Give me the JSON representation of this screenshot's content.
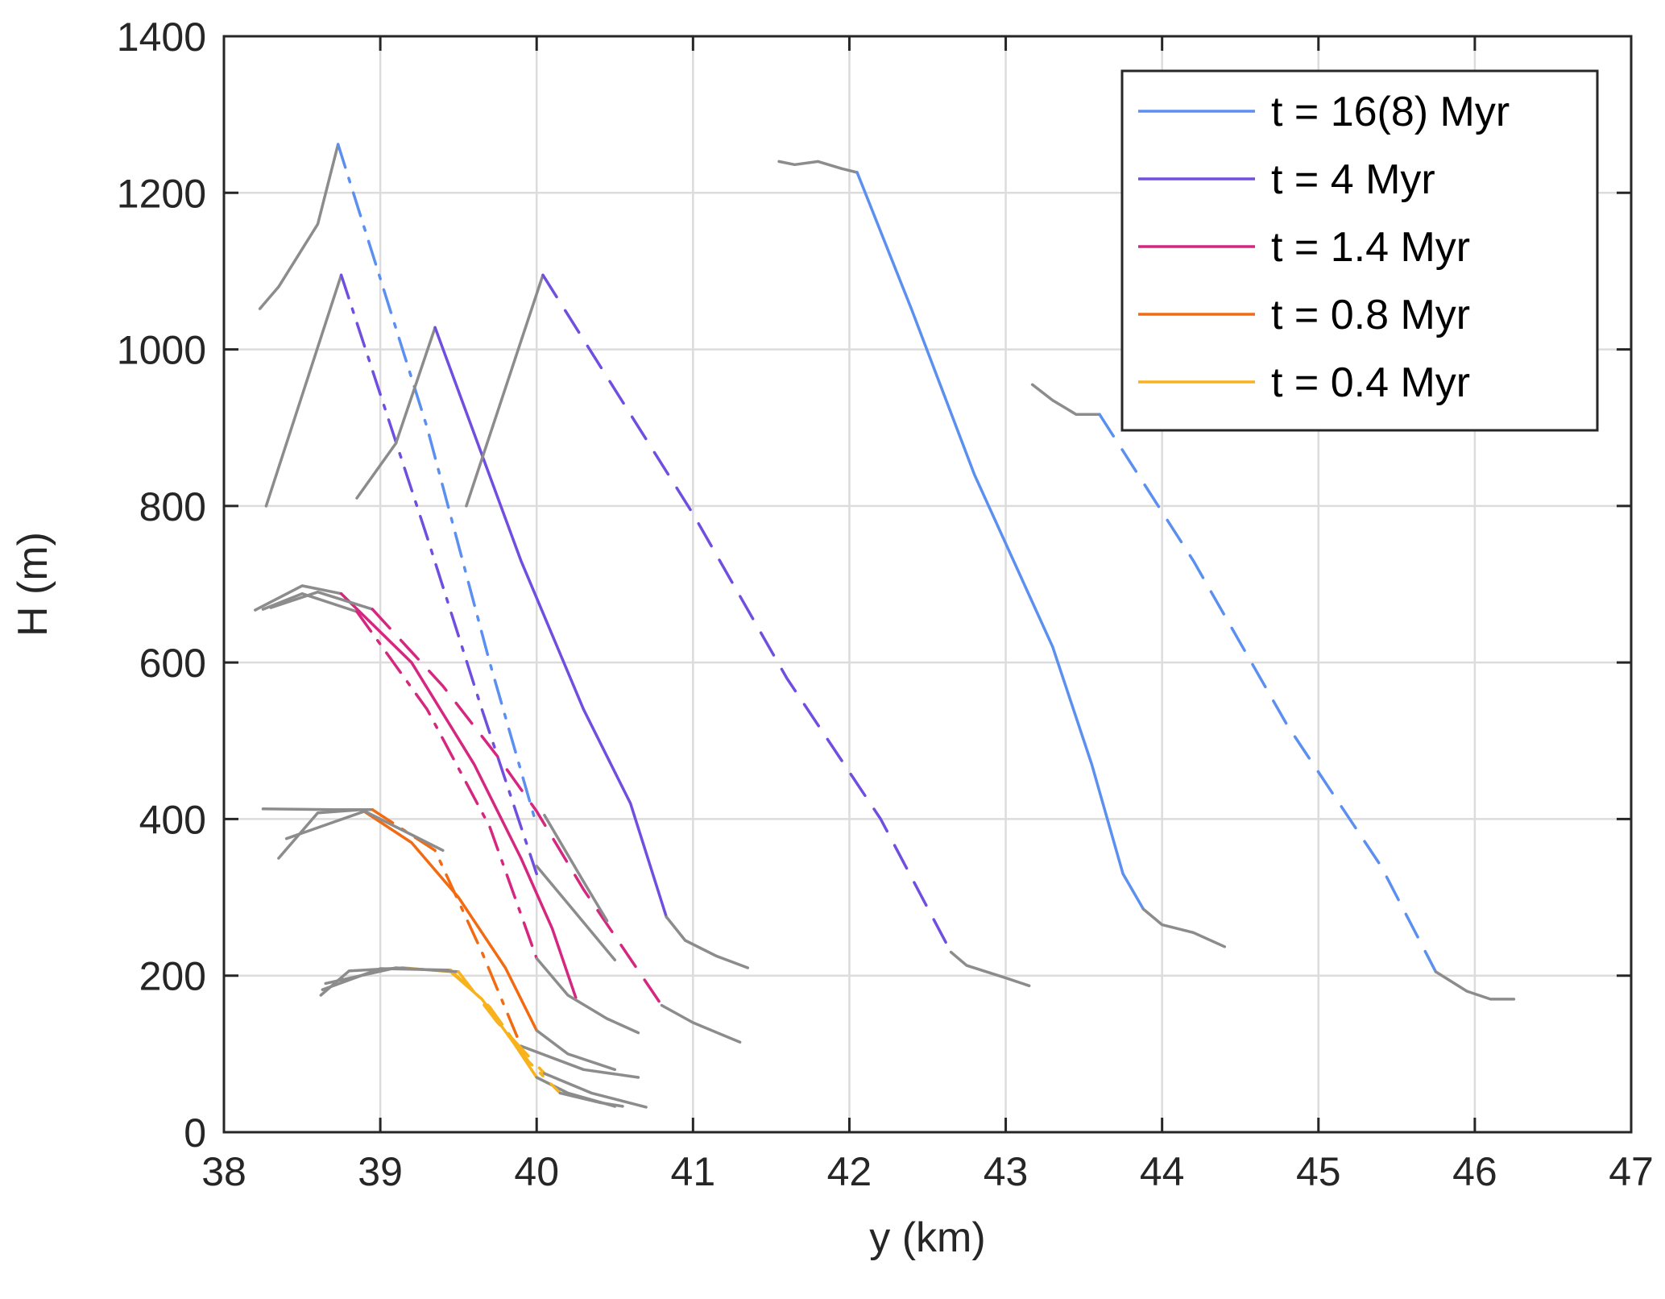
{
  "chart_data": {
    "type": "line",
    "title": "",
    "xlabel": "y (km)",
    "ylabel": "H (m)",
    "xlim": [
      38,
      47
    ],
    "ylim": [
      0,
      1400
    ],
    "xticks": [
      38,
      39,
      40,
      41,
      42,
      43,
      44,
      45,
      46,
      47
    ],
    "yticks": [
      0,
      200,
      400,
      600,
      800,
      1000,
      1200,
      1400
    ],
    "grid": true,
    "legend_position": "top-right",
    "colors": {
      "t16": "#5b8ff0",
      "t4": "#6f4ee0",
      "t1_4": "#d62780",
      "t0_8": "#f26a11",
      "t0_4": "#f7b21c",
      "gray": "#8c8c8c"
    },
    "legend": [
      {
        "label": "t = 16(8) Myr",
        "color_key": "t16"
      },
      {
        "label": "t = 4 Myr",
        "color_key": "t4"
      },
      {
        "label": "t = 1.4 Myr",
        "color_key": "t1_4"
      },
      {
        "label": "t = 0.8 Myr",
        "color_key": "t0_8"
      },
      {
        "label": "t = 0.4 Myr",
        "color_key": "t0_4"
      }
    ],
    "series": [
      {
        "color_key": "gray",
        "dash": "solid",
        "points": [
          [
            38.23,
            1052
          ],
          [
            38.35,
            1080
          ],
          [
            38.6,
            1160
          ],
          [
            38.73,
            1262
          ]
        ]
      },
      {
        "color_key": "t16",
        "dash": "dashdot",
        "points": [
          [
            38.73,
            1262
          ],
          [
            39.3,
            900
          ],
          [
            39.7,
            600
          ],
          [
            40.0,
            392
          ]
        ]
      },
      {
        "color_key": "gray",
        "dash": "solid",
        "points": [
          [
            38.27,
            800
          ],
          [
            38.75,
            1095
          ]
        ]
      },
      {
        "color_key": "t4",
        "dash": "dashdot",
        "points": [
          [
            38.75,
            1095
          ],
          [
            39.3,
            760
          ],
          [
            39.65,
            540
          ],
          [
            40.0,
            330
          ]
        ]
      },
      {
        "color_key": "gray",
        "dash": "solid",
        "points": [
          [
            38.85,
            810
          ],
          [
            39.1,
            880
          ],
          [
            39.35,
            1028
          ]
        ]
      },
      {
        "color_key": "t4",
        "dash": "solid",
        "points": [
          [
            39.35,
            1028
          ],
          [
            39.9,
            730
          ],
          [
            40.3,
            540
          ],
          [
            40.6,
            420
          ],
          [
            40.83,
            275
          ]
        ]
      },
      {
        "color_key": "gray",
        "dash": "solid",
        "points": [
          [
            40.83,
            275
          ],
          [
            40.95,
            245
          ],
          [
            41.15,
            225
          ],
          [
            41.35,
            210
          ]
        ]
      },
      {
        "color_key": "gray",
        "dash": "solid",
        "points": [
          [
            39.55,
            800
          ],
          [
            40.04,
            1095
          ]
        ]
      },
      {
        "color_key": "t4",
        "dash": "dashed",
        "points": [
          [
            40.04,
            1095
          ],
          [
            41.0,
            790
          ],
          [
            41.6,
            580
          ],
          [
            42.2,
            400
          ],
          [
            42.65,
            230
          ]
        ]
      },
      {
        "color_key": "gray",
        "dash": "solid",
        "points": [
          [
            42.65,
            230
          ],
          [
            42.75,
            213
          ],
          [
            43.0,
            197
          ],
          [
            43.15,
            187
          ]
        ]
      },
      {
        "color_key": "gray",
        "dash": "solid",
        "points": [
          [
            41.55,
            1240
          ],
          [
            41.65,
            1236
          ],
          [
            41.8,
            1240
          ],
          [
            41.95,
            1231
          ],
          [
            42.05,
            1226
          ]
        ]
      },
      {
        "color_key": "t16",
        "dash": "solid",
        "points": [
          [
            42.05,
            1226
          ],
          [
            42.4,
            1050
          ],
          [
            42.8,
            840
          ],
          [
            43.3,
            620
          ],
          [
            43.55,
            470
          ],
          [
            43.75,
            330
          ],
          [
            43.88,
            285
          ]
        ]
      },
      {
        "color_key": "gray",
        "dash": "solid",
        "points": [
          [
            43.88,
            285
          ],
          [
            44.0,
            265
          ],
          [
            44.2,
            255
          ],
          [
            44.4,
            237
          ]
        ]
      },
      {
        "color_key": "gray",
        "dash": "solid",
        "points": [
          [
            43.17,
            955
          ],
          [
            43.3,
            935
          ],
          [
            43.45,
            917
          ],
          [
            43.6,
            917
          ]
        ]
      },
      {
        "color_key": "t16",
        "dash": "dashed",
        "points": [
          [
            43.6,
            917
          ],
          [
            44.2,
            730
          ],
          [
            44.8,
            520
          ],
          [
            45.4,
            340
          ],
          [
            45.75,
            205
          ]
        ]
      },
      {
        "color_key": "gray",
        "dash": "solid",
        "points": [
          [
            45.75,
            205
          ],
          [
            45.95,
            180
          ],
          [
            46.1,
            170
          ],
          [
            46.25,
            170
          ]
        ]
      },
      {
        "color_key": "gray",
        "dash": "solid",
        "points": [
          [
            38.2,
            667
          ],
          [
            38.5,
            698
          ],
          [
            38.75,
            688
          ]
        ]
      },
      {
        "color_key": "t1_4",
        "dash": "solid",
        "points": [
          [
            38.75,
            688
          ],
          [
            39.2,
            600
          ],
          [
            39.6,
            470
          ],
          [
            39.9,
            350
          ],
          [
            40.1,
            260
          ],
          [
            40.25,
            172
          ]
        ]
      },
      {
        "color_key": "gray",
        "dash": "solid",
        "points": [
          [
            38.25,
            668
          ],
          [
            38.5,
            688
          ],
          [
            38.85,
            665
          ]
        ]
      },
      {
        "color_key": "t1_4",
        "dash": "dashdot",
        "points": [
          [
            38.85,
            665
          ],
          [
            39.3,
            540
          ],
          [
            39.7,
            390
          ],
          [
            40.0,
            222
          ]
        ]
      },
      {
        "color_key": "gray",
        "dash": "solid",
        "points": [
          [
            40.0,
            222
          ],
          [
            40.2,
            175
          ],
          [
            40.45,
            145
          ],
          [
            40.65,
            127
          ]
        ]
      },
      {
        "color_key": "gray",
        "dash": "solid",
        "points": [
          [
            38.3,
            670
          ],
          [
            38.6,
            690
          ],
          [
            38.95,
            668
          ]
        ]
      },
      {
        "color_key": "t1_4",
        "dash": "dashed",
        "points": [
          [
            38.95,
            668
          ],
          [
            39.4,
            570
          ],
          [
            39.75,
            480
          ],
          [
            40.0,
            410
          ],
          [
            40.3,
            310
          ],
          [
            40.8,
            162
          ]
        ]
      },
      {
        "color_key": "gray",
        "dash": "solid",
        "points": [
          [
            40.8,
            162
          ],
          [
            41.0,
            140
          ],
          [
            41.3,
            115
          ]
        ]
      },
      {
        "color_key": "gray",
        "dash": "solid",
        "points": [
          [
            40.0,
            340
          ],
          [
            40.25,
            280
          ],
          [
            40.5,
            220
          ]
        ]
      },
      {
        "color_key": "gray",
        "dash": "solid",
        "points": [
          [
            40.05,
            405
          ],
          [
            40.3,
            320
          ],
          [
            40.45,
            270
          ]
        ]
      },
      {
        "color_key": "gray",
        "dash": "solid",
        "points": [
          [
            38.35,
            350
          ],
          [
            38.6,
            408
          ],
          [
            38.88,
            412
          ]
        ]
      },
      {
        "color_key": "t0_8",
        "dash": "solid",
        "points": [
          [
            38.88,
            412
          ],
          [
            39.2,
            370
          ],
          [
            39.5,
            300
          ],
          [
            39.8,
            210
          ],
          [
            40.0,
            130
          ]
        ]
      },
      {
        "color_key": "gray",
        "dash": "solid",
        "points": [
          [
            40.0,
            130
          ],
          [
            40.2,
            100
          ],
          [
            40.5,
            80
          ]
        ]
      },
      {
        "color_key": "gray",
        "dash": "solid",
        "points": [
          [
            38.25,
            413
          ],
          [
            38.7,
            412
          ],
          [
            38.95,
            412
          ]
        ]
      },
      {
        "color_key": "t0_8",
        "dash": "dashdot",
        "points": [
          [
            38.95,
            412
          ],
          [
            39.35,
            360
          ],
          [
            39.65,
            230
          ],
          [
            39.9,
            110
          ]
        ]
      },
      {
        "color_key": "gray",
        "dash": "solid",
        "points": [
          [
            39.9,
            110
          ],
          [
            40.3,
            80
          ],
          [
            40.65,
            70
          ]
        ]
      },
      {
        "color_key": "gray",
        "dash": "solid",
        "points": [
          [
            38.4,
            375
          ],
          [
            38.9,
            410
          ],
          [
            39.4,
            360
          ]
        ]
      },
      {
        "color_key": "gray",
        "dash": "solid",
        "points": [
          [
            38.62,
            175
          ],
          [
            38.8,
            206
          ],
          [
            39.15,
            210
          ]
        ]
      },
      {
        "color_key": "t0_4",
        "dash": "solid",
        "points": [
          [
            39.15,
            210
          ],
          [
            39.45,
            205
          ],
          [
            39.65,
            170
          ],
          [
            39.85,
            115
          ],
          [
            40.0,
            70
          ]
        ]
      },
      {
        "color_key": "gray",
        "dash": "solid",
        "points": [
          [
            40.0,
            70
          ],
          [
            40.2,
            50
          ],
          [
            40.5,
            33
          ]
        ]
      },
      {
        "color_key": "gray",
        "dash": "solid",
        "points": [
          [
            38.63,
            182
          ],
          [
            39.0,
            209
          ],
          [
            39.45,
            207
          ]
        ]
      },
      {
        "color_key": "t0_4",
        "dash": "dashdot",
        "points": [
          [
            39.45,
            207
          ],
          [
            39.7,
            160
          ],
          [
            39.95,
            90
          ],
          [
            40.15,
            50
          ]
        ]
      },
      {
        "color_key": "gray",
        "dash": "solid",
        "points": [
          [
            40.15,
            50
          ],
          [
            40.4,
            38
          ],
          [
            40.55,
            33
          ]
        ]
      },
      {
        "color_key": "gray",
        "dash": "solid",
        "points": [
          [
            38.65,
            190
          ],
          [
            39.1,
            210
          ],
          [
            39.5,
            205
          ]
        ]
      },
      {
        "color_key": "t0_4",
        "dash": "dashed",
        "points": [
          [
            39.5,
            205
          ],
          [
            39.75,
            140
          ],
          [
            40.05,
            75
          ]
        ]
      },
      {
        "color_key": "gray",
        "dash": "solid",
        "points": [
          [
            40.05,
            75
          ],
          [
            40.35,
            50
          ],
          [
            40.7,
            32
          ]
        ]
      }
    ]
  }
}
